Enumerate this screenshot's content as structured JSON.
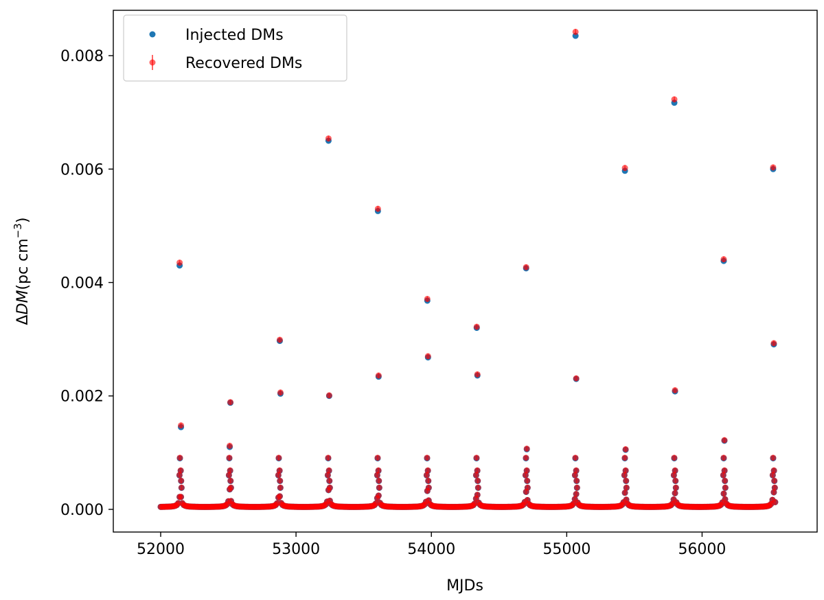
{
  "chart_data": {
    "type": "scatter",
    "title": "",
    "xlabel": "MJDs",
    "ylabel": {
      "prefix": "Δ",
      "symbol": "DM",
      "units_open": "(pc cm",
      "units_exp": "−3",
      "units_close": ")"
    },
    "xlim": [
      51650,
      56850
    ],
    "ylim": [
      -0.0004,
      0.0088
    ],
    "xticks": [
      52000,
      53000,
      54000,
      55000,
      56000
    ],
    "xtick_labels": [
      "52000",
      "53000",
      "54000",
      "55000",
      "56000"
    ],
    "yticks": [
      0,
      0.002,
      0.004,
      0.006,
      0.008
    ],
    "ytick_labels": [
      "0.000",
      "0.002",
      "0.004",
      "0.006",
      "0.008"
    ],
    "grid": false,
    "legend_position": "top-left",
    "series": [
      {
        "name": "Injected DMs",
        "marker": "point",
        "color": "#1f77b4",
        "x": [
          52140,
          52150,
          52510,
          52515,
          52880,
          52885,
          53240,
          53245,
          53605,
          53610,
          53970,
          53975,
          54335,
          54340,
          54700,
          54705,
          55065,
          55070,
          55430,
          55435,
          55795,
          55800,
          56160,
          56165,
          56525,
          56530
        ],
        "y": [
          0.0043,
          0.00145,
          0.0011,
          0.00188,
          0.00297,
          0.00204,
          0.0065,
          0.002,
          0.00526,
          0.00234,
          0.00368,
          0.00268,
          0.0032,
          0.00236,
          0.00425,
          0.00106,
          0.00835,
          0.0023,
          0.00597,
          0.00105,
          0.00717,
          0.00208,
          0.00438,
          0.00121,
          0.006,
          0.00291
        ]
      },
      {
        "name": "Recovered DMs",
        "marker": "point-errorbar",
        "color": "#ff0000",
        "x": [
          52140,
          52150,
          52510,
          52515,
          52880,
          52885,
          53240,
          53245,
          53605,
          53610,
          53970,
          53975,
          54335,
          54340,
          54700,
          54705,
          55065,
          55070,
          55430,
          55435,
          55795,
          55800,
          56160,
          56165,
          56525,
          56530
        ],
        "y": [
          0.00435,
          0.00148,
          0.00112,
          0.00189,
          0.00299,
          0.00206,
          0.00654,
          0.00201,
          0.0053,
          0.00236,
          0.00371,
          0.0027,
          0.00322,
          0.00238,
          0.00427,
          0.00107,
          0.00842,
          0.00231,
          0.00602,
          0.00106,
          0.00723,
          0.0021,
          0.00441,
          0.00122,
          0.00603,
          0.00293
        ]
      }
    ],
    "underlying_signal": {
      "description_free": true,
      "x_start": 52000,
      "x_end": 56540,
      "period_days": 365.25,
      "peak_phase_mjd": 52145,
      "baseline": 4e-05,
      "peak_amplitude": 0.0021
    }
  }
}
